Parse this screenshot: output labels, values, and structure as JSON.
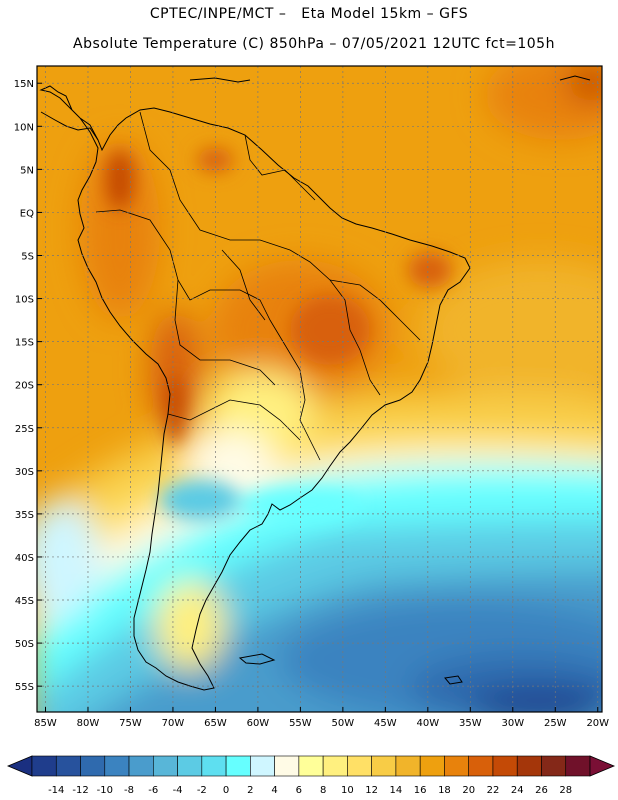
{
  "header": {
    "line1": "CPTEC/INPE/MCT –   Eta Model 15km – GFS",
    "line2": "Absolute Temperature (C) 850hPa – 07/05/2021 12UTC fct=105h"
  },
  "axes": {
    "lat_labels": [
      "15N",
      "10N",
      "5N",
      "EQ",
      "5S",
      "10S",
      "15S",
      "20S",
      "25S",
      "30S",
      "35S",
      "40S",
      "45S",
      "50S",
      "55S"
    ],
    "lat_values": [
      15,
      10,
      5,
      0,
      -5,
      -10,
      -15,
      -20,
      -25,
      -30,
      -35,
      -40,
      -45,
      -50,
      -55
    ],
    "lon_labels": [
      "85W",
      "80W",
      "75W",
      "70W",
      "65W",
      "60W",
      "55W",
      "50W",
      "45W",
      "40W",
      "35W",
      "30W",
      "25W",
      "20W"
    ],
    "lon_values": [
      -85,
      -80,
      -75,
      -70,
      -65,
      -60,
      -55,
      -50,
      -45,
      -40,
      -35,
      -30,
      -25,
      -20
    ],
    "lat_range": [
      -58,
      17
    ],
    "lon_range": [
      -86,
      -19.5
    ]
  },
  "colorbar": {
    "labels": [
      "-14",
      "-12",
      "-10",
      "-8",
      "-6",
      "-4",
      "-2",
      "0",
      "2",
      "4",
      "6",
      "8",
      "10",
      "12",
      "14",
      "16",
      "18",
      "20",
      "22",
      "24",
      "26",
      "28"
    ],
    "colors": [
      "#1f3d8c",
      "#27529d",
      "#2f6aae",
      "#3b83c0",
      "#4a9ccc",
      "#58b6d8",
      "#5ccbe4",
      "#5edff0",
      "#66ffff",
      "#cff6ff",
      "#fffbe6",
      "#ffff99",
      "#fff07f",
      "#ffe066",
      "#f8cc46",
      "#f1b42a",
      "#eea00f",
      "#e8820c",
      "#d8600a",
      "#c44a06",
      "#a4360a",
      "#842818",
      "#70112a"
    ],
    "under_color": "#1a2f80",
    "over_color": "#7a0f35"
  }
}
